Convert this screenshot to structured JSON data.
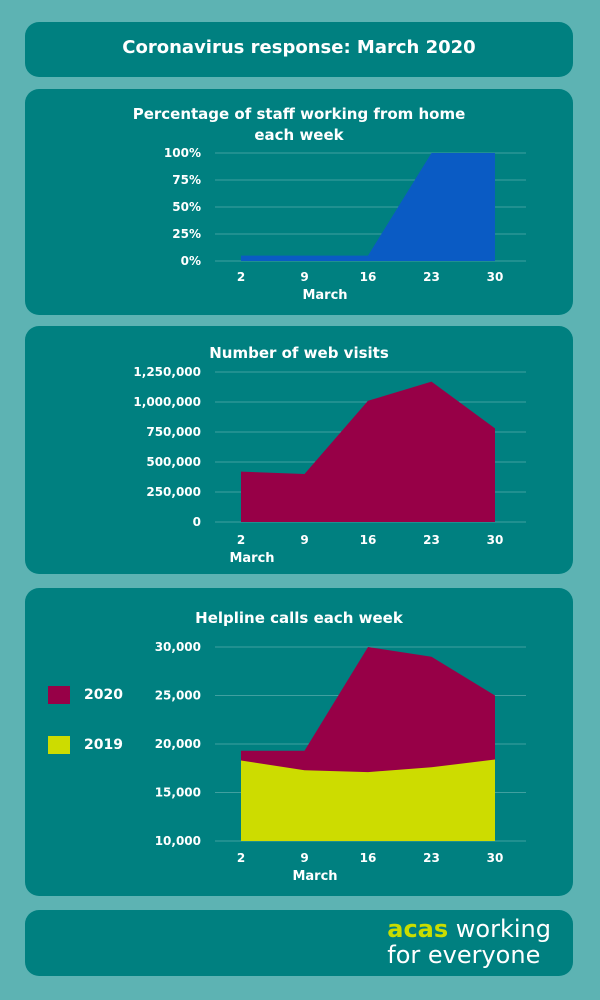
{
  "header": {
    "title": "Coronavirus response: March 2020"
  },
  "chart_data": [
    {
      "type": "area",
      "title": "Percentage of staff working from home each week",
      "xlabel": "March",
      "ylabel": "",
      "x": [
        "2",
        "9",
        "16",
        "23",
        "30"
      ],
      "ylim": [
        0,
        100
      ],
      "yticks": [
        "0%",
        "25%",
        "50%",
        "75%",
        "100%"
      ],
      "ytick_values": [
        0,
        25,
        50,
        75,
        100
      ],
      "series": [
        {
          "values": [
            5,
            5,
            5,
            100,
            100
          ],
          "color": "#0a5bc4"
        }
      ],
      "grid": true
    },
    {
      "type": "area",
      "title": "Number of web visits",
      "xlabel": "March",
      "ylabel": "",
      "x": [
        "2",
        "9",
        "16",
        "23",
        "30"
      ],
      "ylim": [
        0,
        1250000
      ],
      "yticks": [
        "0",
        "250,000",
        "500,000",
        "750,000",
        "1,000,000",
        "1,250,000"
      ],
      "ytick_values": [
        0,
        250000,
        500000,
        750000,
        1000000,
        1250000
      ],
      "series": [
        {
          "values": [
            420000,
            400000,
            1010000,
            1170000,
            780000
          ],
          "color": "#970047"
        }
      ],
      "grid": true
    },
    {
      "type": "area",
      "title": "Helpline calls each week",
      "xlabel": "March",
      "ylabel": "",
      "x": [
        "2",
        "9",
        "16",
        "23",
        "30"
      ],
      "ylim": [
        10000,
        30000
      ],
      "yticks": [
        "10,000",
        "15,000",
        "20,000",
        "25,000",
        "30,000"
      ],
      "ytick_values": [
        10000,
        15000,
        20000,
        25000,
        30000
      ],
      "series": [
        {
          "name": "2020",
          "values": [
            19300,
            19300,
            30000,
            29000,
            25000
          ],
          "color": "#970047"
        },
        {
          "name": "2019",
          "values": [
            18300,
            17300,
            17100,
            17600,
            18400
          ],
          "color": "#cddc00"
        }
      ],
      "legend": "left",
      "grid": true
    }
  ],
  "footer": {
    "brand": "acas",
    "tagline_1": "working",
    "tagline_2": "for everyone"
  }
}
